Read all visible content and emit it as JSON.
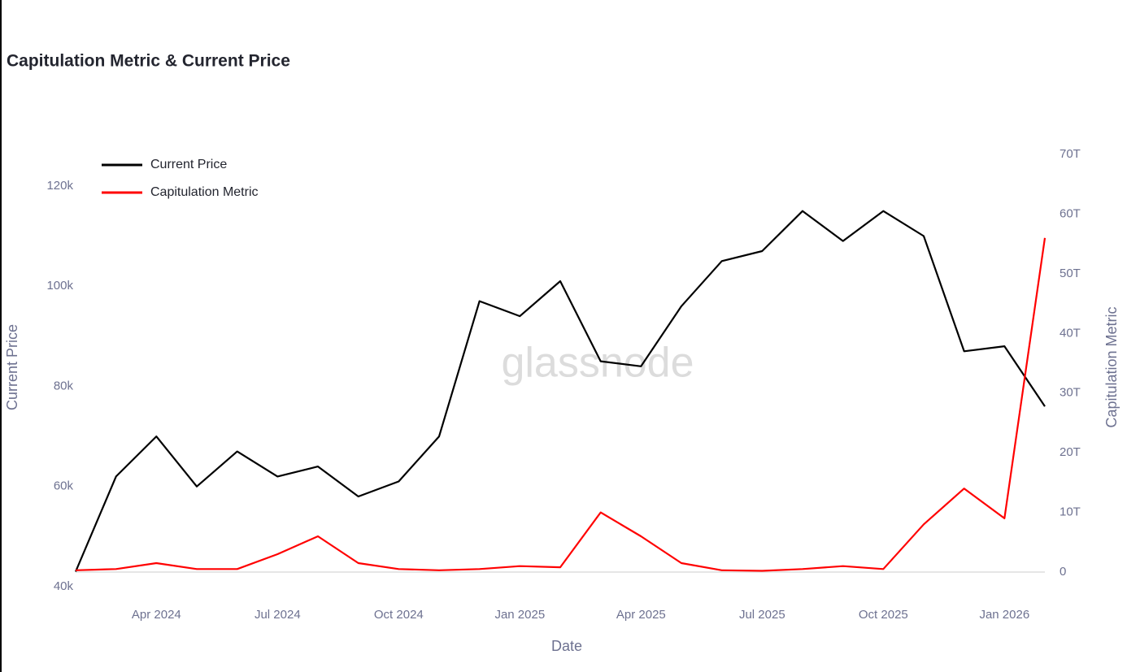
{
  "chart_data": {
    "type": "line",
    "title": "Capitulation Metric & Current Price",
    "watermark": "glassnode",
    "x_label": "Date",
    "y_label": "Current Price",
    "y2_label": "Capitulation Metric",
    "x": [
      "2024-02",
      "2024-03",
      "2024-04",
      "2024-05",
      "2024-06",
      "2024-07",
      "2024-08",
      "2024-09",
      "2024-10",
      "2024-11",
      "2024-12",
      "2025-01",
      "2025-02",
      "2025-03",
      "2025-04",
      "2025-05",
      "2025-06",
      "2025-07",
      "2025-08",
      "2025-09",
      "2025-10",
      "2025-11",
      "2025-12",
      "2026-01",
      "2026-02"
    ],
    "xlim": [
      "2024-02",
      "2026-02"
    ],
    "xticks": [
      {
        "value": "2024-04",
        "label": "Apr 2024"
      },
      {
        "value": "2024-07",
        "label": "Jul 2024"
      },
      {
        "value": "2024-10",
        "label": "Oct 2024"
      },
      {
        "value": "2025-01",
        "label": "Jan 2025"
      },
      {
        "value": "2025-04",
        "label": "Apr 2025"
      },
      {
        "value": "2025-07",
        "label": "Jul 2025"
      },
      {
        "value": "2025-10",
        "label": "Oct 2025"
      },
      {
        "value": "2026-01",
        "label": "Jan 2026"
      }
    ],
    "ylim": [
      40000,
      126300
    ],
    "yticks": [
      {
        "value": 40000,
        "label": "40k"
      },
      {
        "value": 60000,
        "label": "60k"
      },
      {
        "value": 80000,
        "label": "80k"
      },
      {
        "value": 100000,
        "label": "100k"
      },
      {
        "value": 120000,
        "label": "120k"
      }
    ],
    "y2lim": [
      -2.45,
      70
    ],
    "y2ticks": [
      0,
      {
        "value": 10,
        "label": "10T"
      },
      {
        "value": 20,
        "label": "20T"
      },
      {
        "value": 30,
        "label": "30T"
      },
      {
        "value": 40,
        "label": "40T"
      },
      {
        "value": 50,
        "label": "50T"
      },
      {
        "value": 60,
        "label": "60T"
      },
      {
        "value": 70,
        "label": "70T"
      }
    ],
    "y2_zeroline": true,
    "grid": false,
    "legend": "top-left",
    "series": [
      {
        "name": "Current Price",
        "color": "#000000",
        "axis": "y",
        "values": [
          43000,
          62000,
          70000,
          60000,
          67000,
          62000,
          64000,
          58000,
          61000,
          70000,
          97000,
          94000,
          101000,
          85000,
          84000,
          96000,
          105000,
          107000,
          115000,
          109000,
          115000,
          110000,
          87000,
          88000,
          76000
        ]
      },
      {
        "name": "Capitulation Metric",
        "color": "#ff0000",
        "axis": "y2",
        "values": [
          0.3,
          0.5,
          1.5,
          0.5,
          0.5,
          3,
          6,
          1.5,
          0.5,
          0.3,
          0.5,
          1,
          0.8,
          10,
          6,
          1.5,
          0.3,
          0.2,
          0.5,
          1,
          0.5,
          8,
          14,
          9,
          56
        ]
      }
    ]
  }
}
